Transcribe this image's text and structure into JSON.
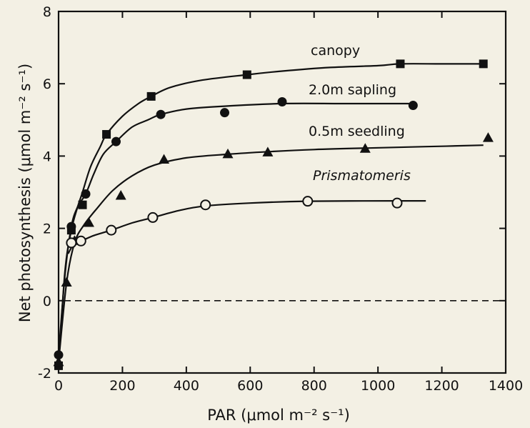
{
  "chart_data": {
    "type": "line",
    "title": "",
    "xlabel": "PAR (μmol m⁻² s⁻¹)",
    "ylabel": "Net photosynthesis (μmol m⁻² s⁻¹)",
    "xlim": [
      0,
      1400
    ],
    "ylim": [
      -2,
      8
    ],
    "xticks": [
      "0",
      "200",
      "400",
      "600",
      "800",
      "1000",
      "1200",
      "1400"
    ],
    "yticks": [
      "-2",
      "0",
      "2",
      "4",
      "6",
      "8"
    ],
    "reference_line": {
      "y": 0,
      "style": "dashed"
    },
    "grid": false,
    "series": [
      {
        "name": "canopy",
        "marker": "square-filled",
        "points": [
          [
            0,
            -1.8
          ],
          [
            40,
            1.95
          ],
          [
            75,
            2.65
          ],
          [
            150,
            4.6
          ],
          [
            290,
            5.65
          ],
          [
            590,
            6.25
          ],
          [
            1070,
            6.55
          ],
          [
            1330,
            6.55
          ]
        ],
        "curve": [
          [
            0,
            -1.8
          ],
          [
            20,
            0.8
          ],
          [
            40,
            1.95
          ],
          [
            60,
            2.6
          ],
          [
            75,
            3.0
          ],
          [
            100,
            3.7
          ],
          [
            130,
            4.25
          ],
          [
            150,
            4.6
          ],
          [
            200,
            5.1
          ],
          [
            250,
            5.45
          ],
          [
            290,
            5.65
          ],
          [
            350,
            5.9
          ],
          [
            450,
            6.1
          ],
          [
            590,
            6.25
          ],
          [
            700,
            6.35
          ],
          [
            850,
            6.45
          ],
          [
            1000,
            6.5
          ],
          [
            1070,
            6.55
          ],
          [
            1200,
            6.55
          ],
          [
            1330,
            6.55
          ]
        ]
      },
      {
        "name": "2.0m sapling",
        "marker": "circle-filled",
        "points": [
          [
            0,
            -1.5
          ],
          [
            40,
            2.05
          ],
          [
            85,
            2.95
          ],
          [
            180,
            4.4
          ],
          [
            320,
            5.15
          ],
          [
            520,
            5.2
          ],
          [
            700,
            5.5
          ],
          [
            1110,
            5.4
          ]
        ],
        "curve": [
          [
            0,
            -1.5
          ],
          [
            20,
            0.7
          ],
          [
            40,
            2.05
          ],
          [
            60,
            2.6
          ],
          [
            85,
            2.95
          ],
          [
            110,
            3.5
          ],
          [
            140,
            4.05
          ],
          [
            180,
            4.4
          ],
          [
            230,
            4.8
          ],
          [
            280,
            5.0
          ],
          [
            320,
            5.15
          ],
          [
            400,
            5.3
          ],
          [
            520,
            5.38
          ],
          [
            700,
            5.45
          ],
          [
            900,
            5.45
          ],
          [
            1110,
            5.45
          ]
        ]
      },
      {
        "name": "0.5m seedling",
        "marker": "triangle-filled",
        "points": [
          [
            0,
            -1.7
          ],
          [
            25,
            0.5
          ],
          [
            50,
            1.65
          ],
          [
            95,
            2.15
          ],
          [
            195,
            2.9
          ],
          [
            330,
            3.9
          ],
          [
            530,
            4.05
          ],
          [
            655,
            4.1
          ],
          [
            960,
            4.2
          ],
          [
            1345,
            4.5
          ]
        ],
        "curve": [
          [
            0,
            -1.7
          ],
          [
            25,
            0.5
          ],
          [
            50,
            1.6
          ],
          [
            80,
            2.1
          ],
          [
            120,
            2.55
          ],
          [
            170,
            3.05
          ],
          [
            230,
            3.45
          ],
          [
            300,
            3.75
          ],
          [
            400,
            3.95
          ],
          [
            530,
            4.05
          ],
          [
            655,
            4.12
          ],
          [
            800,
            4.18
          ],
          [
            960,
            4.22
          ],
          [
            1150,
            4.26
          ],
          [
            1330,
            4.3
          ]
        ]
      },
      {
        "name": "Prismatomeris",
        "marker": "circle-open",
        "points": [
          [
            40,
            1.6
          ],
          [
            70,
            1.65
          ],
          [
            165,
            1.95
          ],
          [
            295,
            2.3
          ],
          [
            460,
            2.65
          ],
          [
            780,
            2.75
          ],
          [
            1060,
            2.7
          ]
        ],
        "curve": [
          [
            30,
            1.3
          ],
          [
            50,
            1.6
          ],
          [
            70,
            1.65
          ],
          [
            110,
            1.8
          ],
          [
            165,
            1.95
          ],
          [
            230,
            2.15
          ],
          [
            295,
            2.3
          ],
          [
            380,
            2.5
          ],
          [
            460,
            2.62
          ],
          [
            600,
            2.7
          ],
          [
            780,
            2.75
          ],
          [
            1060,
            2.76
          ],
          [
            1150,
            2.76
          ]
        ]
      }
    ]
  }
}
